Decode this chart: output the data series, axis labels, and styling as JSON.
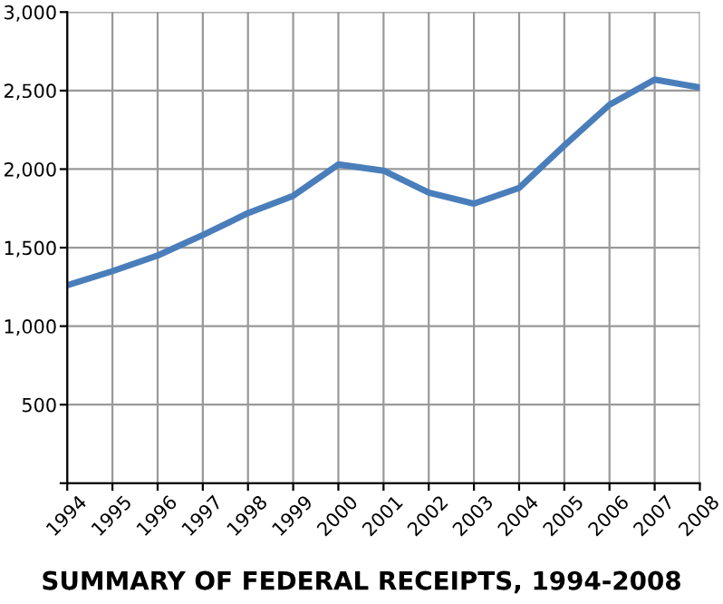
{
  "chart_data": {
    "type": "line",
    "title": "SUMMARY OF FEDERAL RECEIPTS, 1994-2008",
    "x": [
      1994,
      1995,
      1996,
      1997,
      1998,
      1999,
      2000,
      2001,
      2002,
      2003,
      2004,
      2005,
      2006,
      2007,
      2008
    ],
    "series": [
      {
        "color": "#4a7ebb",
        "values": [
          1260,
          1350,
          1450,
          1580,
          1720,
          1830,
          2030,
          1990,
          1850,
          1780,
          1880,
          2150,
          2410,
          2570,
          2520
        ]
      }
    ],
    "xlim": [
      1994,
      2008
    ],
    "xticks": [
      1994,
      1995,
      1996,
      1997,
      1998,
      1999,
      2000,
      2001,
      2002,
      2003,
      2004,
      2005,
      2006,
      2007,
      2008
    ],
    "ylim": [
      0,
      3000
    ],
    "yticks": [
      {
        "value": 0,
        "label": null
      },
      {
        "value": 500,
        "label": "500"
      },
      {
        "value": 1000,
        "label": "1,000"
      },
      {
        "value": 1500,
        "label": "1,500"
      },
      {
        "value": 2000,
        "label": "2,000"
      },
      {
        "value": 2500,
        "label": "2,500"
      },
      {
        "value": 3000,
        "label": "3,000"
      }
    ],
    "grid": true,
    "marker": "none",
    "line_style": "solid"
  }
}
